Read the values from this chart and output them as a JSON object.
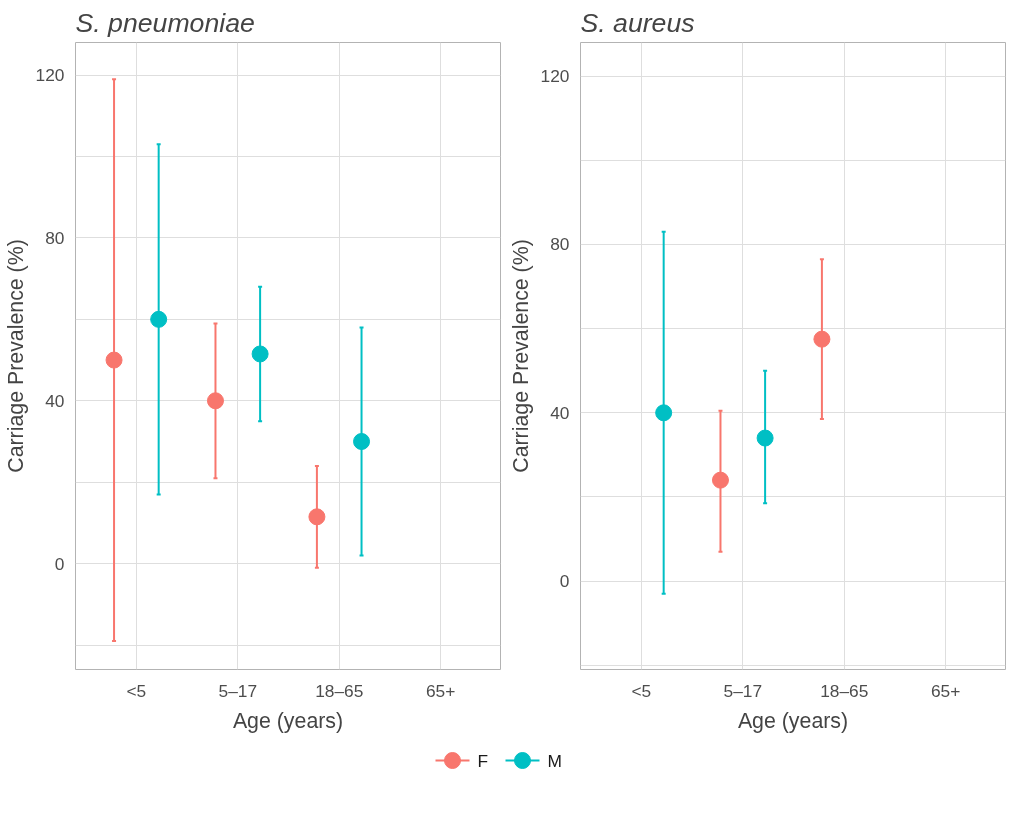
{
  "chart_data": [
    {
      "type": "scatter",
      "title": "S. pneumoniae",
      "xlabel": "Age (years)",
      "ylabel": "Carriage Prevalence (%)",
      "categories": [
        "<5",
        "5–17",
        "18–65",
        "65+"
      ],
      "ylim": [
        -26,
        128
      ],
      "yticks": [
        {
          "value": -20,
          "label": null
        },
        0,
        {
          "value": 20,
          "label": null
        },
        40,
        {
          "value": 60,
          "label": null
        },
        80,
        {
          "value": 100,
          "label": null
        },
        120
      ],
      "grid": true,
      "marker": "circle",
      "legend": "bottom",
      "series": [
        {
          "name": "F",
          "color": "#f8766d",
          "values": [
            50,
            40,
            11.5,
            null
          ],
          "errors": [
            [
              -19,
              119
            ],
            [
              21,
              59
            ],
            [
              -1,
              24
            ],
            null
          ]
        },
        {
          "name": "M",
          "color": "#00bfc4",
          "values": [
            60,
            51.5,
            30,
            null
          ],
          "errors": [
            [
              17,
              103
            ],
            [
              35,
              68
            ],
            [
              2,
              58
            ],
            null
          ]
        }
      ]
    },
    {
      "type": "scatter",
      "title": "S. aureus",
      "xlabel": "Age (years)",
      "ylabel": "Carriage Prevalence (%)",
      "categories": [
        "<5",
        "5–17",
        "18–65",
        "65+"
      ],
      "ylim": [
        -21,
        128
      ],
      "yticks": [
        {
          "value": -20,
          "label": null
        },
        0,
        {
          "value": 20,
          "label": null
        },
        40,
        {
          "value": 60,
          "label": null
        },
        80,
        {
          "value": 100,
          "label": null
        },
        120
      ],
      "grid": true,
      "marker": "circle",
      "series": [
        {
          "color": "#f8766d",
          "values": [
            null,
            24,
            57.5,
            null
          ],
          "errors": [
            null,
            [
              7,
              40.5
            ],
            [
              38.5,
              76.5
            ],
            null
          ]
        },
        {
          "color": "#00bfc4",
          "values": [
            40,
            34,
            null,
            null
          ],
          "errors": [
            [
              -3,
              83
            ],
            [
              18.5,
              50
            ],
            null,
            null
          ]
        }
      ]
    }
  ]
}
